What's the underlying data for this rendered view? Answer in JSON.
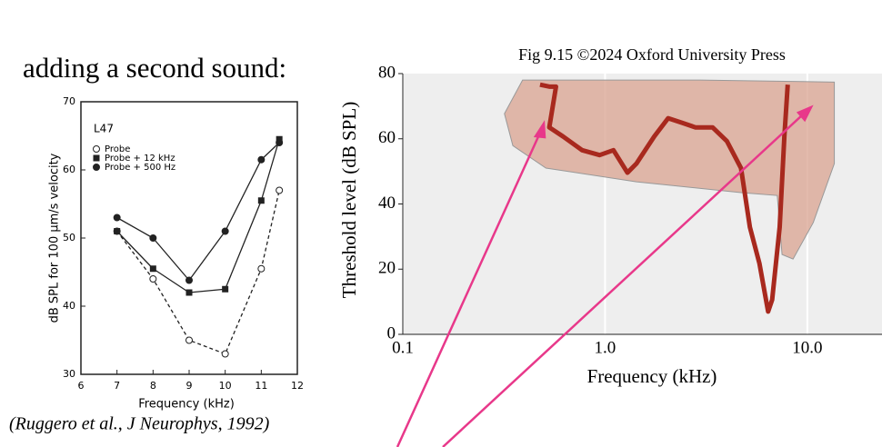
{
  "heading": "adding a second sound:",
  "caption": "(Ruggero et al., J Neurophys, 1992)",
  "chart_data": [
    {
      "type": "line",
      "annotation": "L47",
      "x_label": "Frequency (kHz)",
      "y_label": "dB SPL for 100 μm/s velocity",
      "x": [
        7,
        8,
        9,
        10,
        11,
        11.5
      ],
      "series": [
        {
          "name": "Probe",
          "color": "#222222",
          "marker": "open-circle",
          "dash": true,
          "values": [
            51,
            44,
            35,
            33,
            45.5,
            57
          ]
        },
        {
          "name": "Probe + 12 kHz",
          "color": "#222222",
          "marker": "square",
          "dash": false,
          "values": [
            51,
            45.5,
            42,
            42.5,
            55.5,
            64.5
          ]
        },
        {
          "name": "Probe + 500 Hz",
          "color": "#222222",
          "marker": "circle",
          "dash": false,
          "values": [
            53,
            50,
            43.8,
            51,
            61.5,
            64
          ]
        }
      ],
      "xlim": [
        6,
        12
      ],
      "xticks": [
        6,
        7,
        8,
        9,
        10,
        11,
        12
      ],
      "ylim": [
        30,
        70
      ],
      "yticks": [
        30,
        40,
        50,
        60,
        70
      ],
      "legend": "upper left",
      "grid": false
    },
    {
      "type": "line",
      "title": "Fig 9.15 ©2024 Oxford University Press",
      "x_label": "Frequency (kHz)",
      "y_label": "Threshold level (dB SPL)",
      "xscale": "log",
      "xlim": [
        0.1,
        23.4
      ],
      "xticks": [
        0.1,
        {
          "value": 1,
          "label": "1.0"
        },
        {
          "value": 10,
          "label": "10.0"
        }
      ],
      "ylim": [
        0,
        80
      ],
      "yticks": [
        0,
        20,
        40,
        60,
        80
      ],
      "grid": "x",
      "background": "#eeeeee",
      "regions": [
        {
          "color": "#d9a390",
          "x": [
            0.318,
            0.391,
            2.96,
            13.6,
            13.6,
            10.7,
            8.5,
            7.5,
            7.1,
            4.7,
            1.43,
            0.51,
            0.35
          ],
          "values": [
            67.7,
            78,
            78,
            77.4,
            52.4,
            34.3,
            23.1,
            24.5,
            42.6,
            43.5,
            46.8,
            51,
            57.9
          ]
        }
      ],
      "series": [
        {
          "color": "#a8291e",
          "x": [
            0.477,
            0.53,
            0.572,
            0.53,
            0.62,
            0.77,
            0.94,
            1.1,
            1.29,
            1.43,
            1.58,
            1.75,
            2.05,
            2.4,
            2.8,
            3.4,
            4.0,
            4.7,
            5.2,
            5.8,
            6.4,
            6.7,
            7.3,
            7.7,
            8.0
          ],
          "values": [
            76.6,
            76,
            76,
            63.5,
            60.7,
            56.5,
            55,
            56.5,
            49.6,
            52.4,
            56.5,
            60.7,
            66.3,
            64.9,
            63.5,
            63.5,
            59.3,
            51,
            32.9,
            21.7,
            7,
            10.6,
            32.9,
            60.7,
            76.6
          ]
        }
      ]
    }
  ]
}
